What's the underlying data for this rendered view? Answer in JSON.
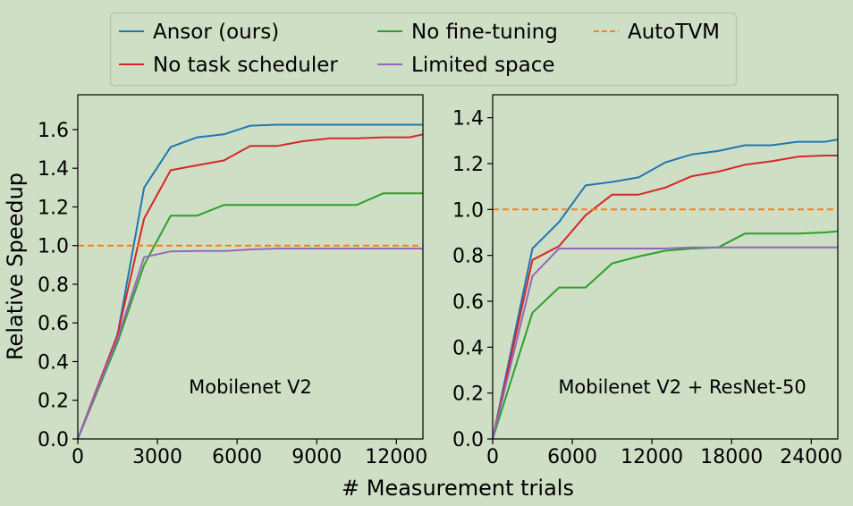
{
  "colors": {
    "background": "#cfdfc5",
    "ansor": "#1f77b4",
    "no_task_scheduler": "#d62728",
    "no_fine_tuning": "#2ca02c",
    "limited_space": "#9467bd",
    "autotvm": "#ff7f0e"
  },
  "legend": {
    "items": [
      {
        "key": "ansor",
        "label": "Ansor (ours)",
        "dashed": false
      },
      {
        "key": "no_task_scheduler",
        "label": "No task scheduler",
        "dashed": false
      },
      {
        "key": "no_fine_tuning",
        "label": "No fine-tuning",
        "dashed": false
      },
      {
        "key": "limited_space",
        "label": "Limited space",
        "dashed": false
      },
      {
        "key": "autotvm",
        "label": "AutoTVM",
        "dashed": true
      }
    ]
  },
  "labels": {
    "ylabel": "Relative Speedup",
    "xlabel": "# Measurement trials"
  },
  "chart_data": [
    {
      "type": "line",
      "annotation": "Mobilenet V2",
      "xlim": [
        0,
        13000
      ],
      "ylim": [
        0,
        1.78
      ],
      "xticks": [
        0,
        3000,
        6000,
        9000,
        12000
      ],
      "yticks": [
        0.0,
        0.2,
        0.4,
        0.6,
        0.8,
        1.0,
        1.2,
        1.4,
        1.6
      ],
      "xtick_labels": [
        "0",
        "3000",
        "6000",
        "9000",
        "12000"
      ],
      "ytick_labels": [
        "0.0",
        "0.2",
        "0.4",
        "0.6",
        "0.8",
        "1.0",
        "1.2",
        "1.4",
        "1.6"
      ],
      "series": [
        {
          "key": "ansor",
          "name": "Ansor (ours)",
          "x": [
            0,
            1500,
            2500,
            3500,
            4500,
            5500,
            6500,
            7500,
            8500,
            9500,
            10500,
            11500,
            12500,
            13000
          ],
          "y": [
            0,
            0.54,
            1.3,
            1.51,
            1.56,
            1.575,
            1.62,
            1.625,
            1.625,
            1.625,
            1.625,
            1.625,
            1.625,
            1.625
          ]
        },
        {
          "key": "no_task_scheduler",
          "name": "No task scheduler",
          "x": [
            0,
            1500,
            2500,
            3500,
            4500,
            5500,
            6500,
            7500,
            8500,
            9500,
            10500,
            11500,
            12500,
            13000
          ],
          "y": [
            0,
            0.54,
            1.14,
            1.39,
            1.415,
            1.44,
            1.515,
            1.515,
            1.54,
            1.555,
            1.555,
            1.56,
            1.56,
            1.575
          ]
        },
        {
          "key": "no_fine_tuning",
          "name": "No fine-tuning",
          "x": [
            0,
            1500,
            2500,
            3500,
            4500,
            5500,
            6500,
            7500,
            8500,
            9500,
            10500,
            11500,
            12500,
            13000
          ],
          "y": [
            0,
            0.5,
            0.9,
            1.155,
            1.155,
            1.21,
            1.21,
            1.21,
            1.21,
            1.21,
            1.21,
            1.27,
            1.27,
            1.27
          ]
        },
        {
          "key": "limited_space",
          "name": "Limited space",
          "x": [
            0,
            1500,
            2500,
            3500,
            4500,
            5500,
            6500,
            7500,
            8500,
            9500,
            10500,
            11500,
            12500,
            13000
          ],
          "y": [
            0,
            0.52,
            0.94,
            0.97,
            0.972,
            0.972,
            0.98,
            0.985,
            0.985,
            0.985,
            0.985,
            0.985,
            0.985,
            0.985
          ]
        },
        {
          "key": "autotvm",
          "name": "AutoTVM",
          "dashed": true,
          "x": [
            0,
            13000
          ],
          "y": [
            1.0,
            1.0
          ]
        }
      ]
    },
    {
      "type": "line",
      "annotation": "Mobilenet V2 + ResNet-50",
      "xlim": [
        0,
        26000
      ],
      "ylim": [
        0,
        1.5
      ],
      "xticks": [
        0,
        6000,
        12000,
        18000,
        24000
      ],
      "yticks": [
        0.0,
        0.2,
        0.4,
        0.6,
        0.8,
        1.0,
        1.2,
        1.4
      ],
      "xtick_labels": [
        "0",
        "6000",
        "12000",
        "18000",
        "24000"
      ],
      "ytick_labels": [
        "0.0",
        "0.2",
        "0.4",
        "0.6",
        "0.8",
        "1.0",
        "1.2",
        "1.4"
      ],
      "series": [
        {
          "key": "ansor",
          "name": "Ansor (ours)",
          "x": [
            0,
            3000,
            5000,
            7000,
            9000,
            11000,
            13000,
            15000,
            17000,
            19000,
            21000,
            23000,
            25000,
            26000
          ],
          "y": [
            0,
            0.83,
            0.945,
            1.105,
            1.12,
            1.14,
            1.205,
            1.24,
            1.255,
            1.28,
            1.28,
            1.295,
            1.295,
            1.305
          ]
        },
        {
          "key": "no_task_scheduler",
          "name": "No task scheduler",
          "x": [
            0,
            3000,
            5000,
            7000,
            9000,
            11000,
            13000,
            15000,
            17000,
            19000,
            21000,
            23000,
            25000,
            26000
          ],
          "y": [
            0,
            0.78,
            0.84,
            0.975,
            1.065,
            1.065,
            1.095,
            1.145,
            1.165,
            1.195,
            1.21,
            1.23,
            1.235,
            1.235
          ]
        },
        {
          "key": "no_fine_tuning",
          "name": "No fine-tuning",
          "x": [
            0,
            3000,
            5000,
            7000,
            9000,
            11000,
            13000,
            15000,
            17000,
            19000,
            21000,
            23000,
            25000,
            26000
          ],
          "y": [
            0,
            0.55,
            0.66,
            0.66,
            0.765,
            0.795,
            0.82,
            0.83,
            0.835,
            0.895,
            0.895,
            0.895,
            0.9,
            0.905
          ]
        },
        {
          "key": "limited_space",
          "name": "Limited space",
          "x": [
            0,
            3000,
            5000,
            7000,
            9000,
            11000,
            13000,
            15000,
            17000,
            19000,
            21000,
            23000,
            25000,
            26000
          ],
          "y": [
            0,
            0.71,
            0.83,
            0.83,
            0.83,
            0.83,
            0.83,
            0.835,
            0.835,
            0.835,
            0.835,
            0.835,
            0.835,
            0.835
          ]
        },
        {
          "key": "autotvm",
          "name": "AutoTVM",
          "dashed": true,
          "x": [
            0,
            26000
          ],
          "y": [
            1.0,
            1.0
          ]
        }
      ]
    }
  ]
}
